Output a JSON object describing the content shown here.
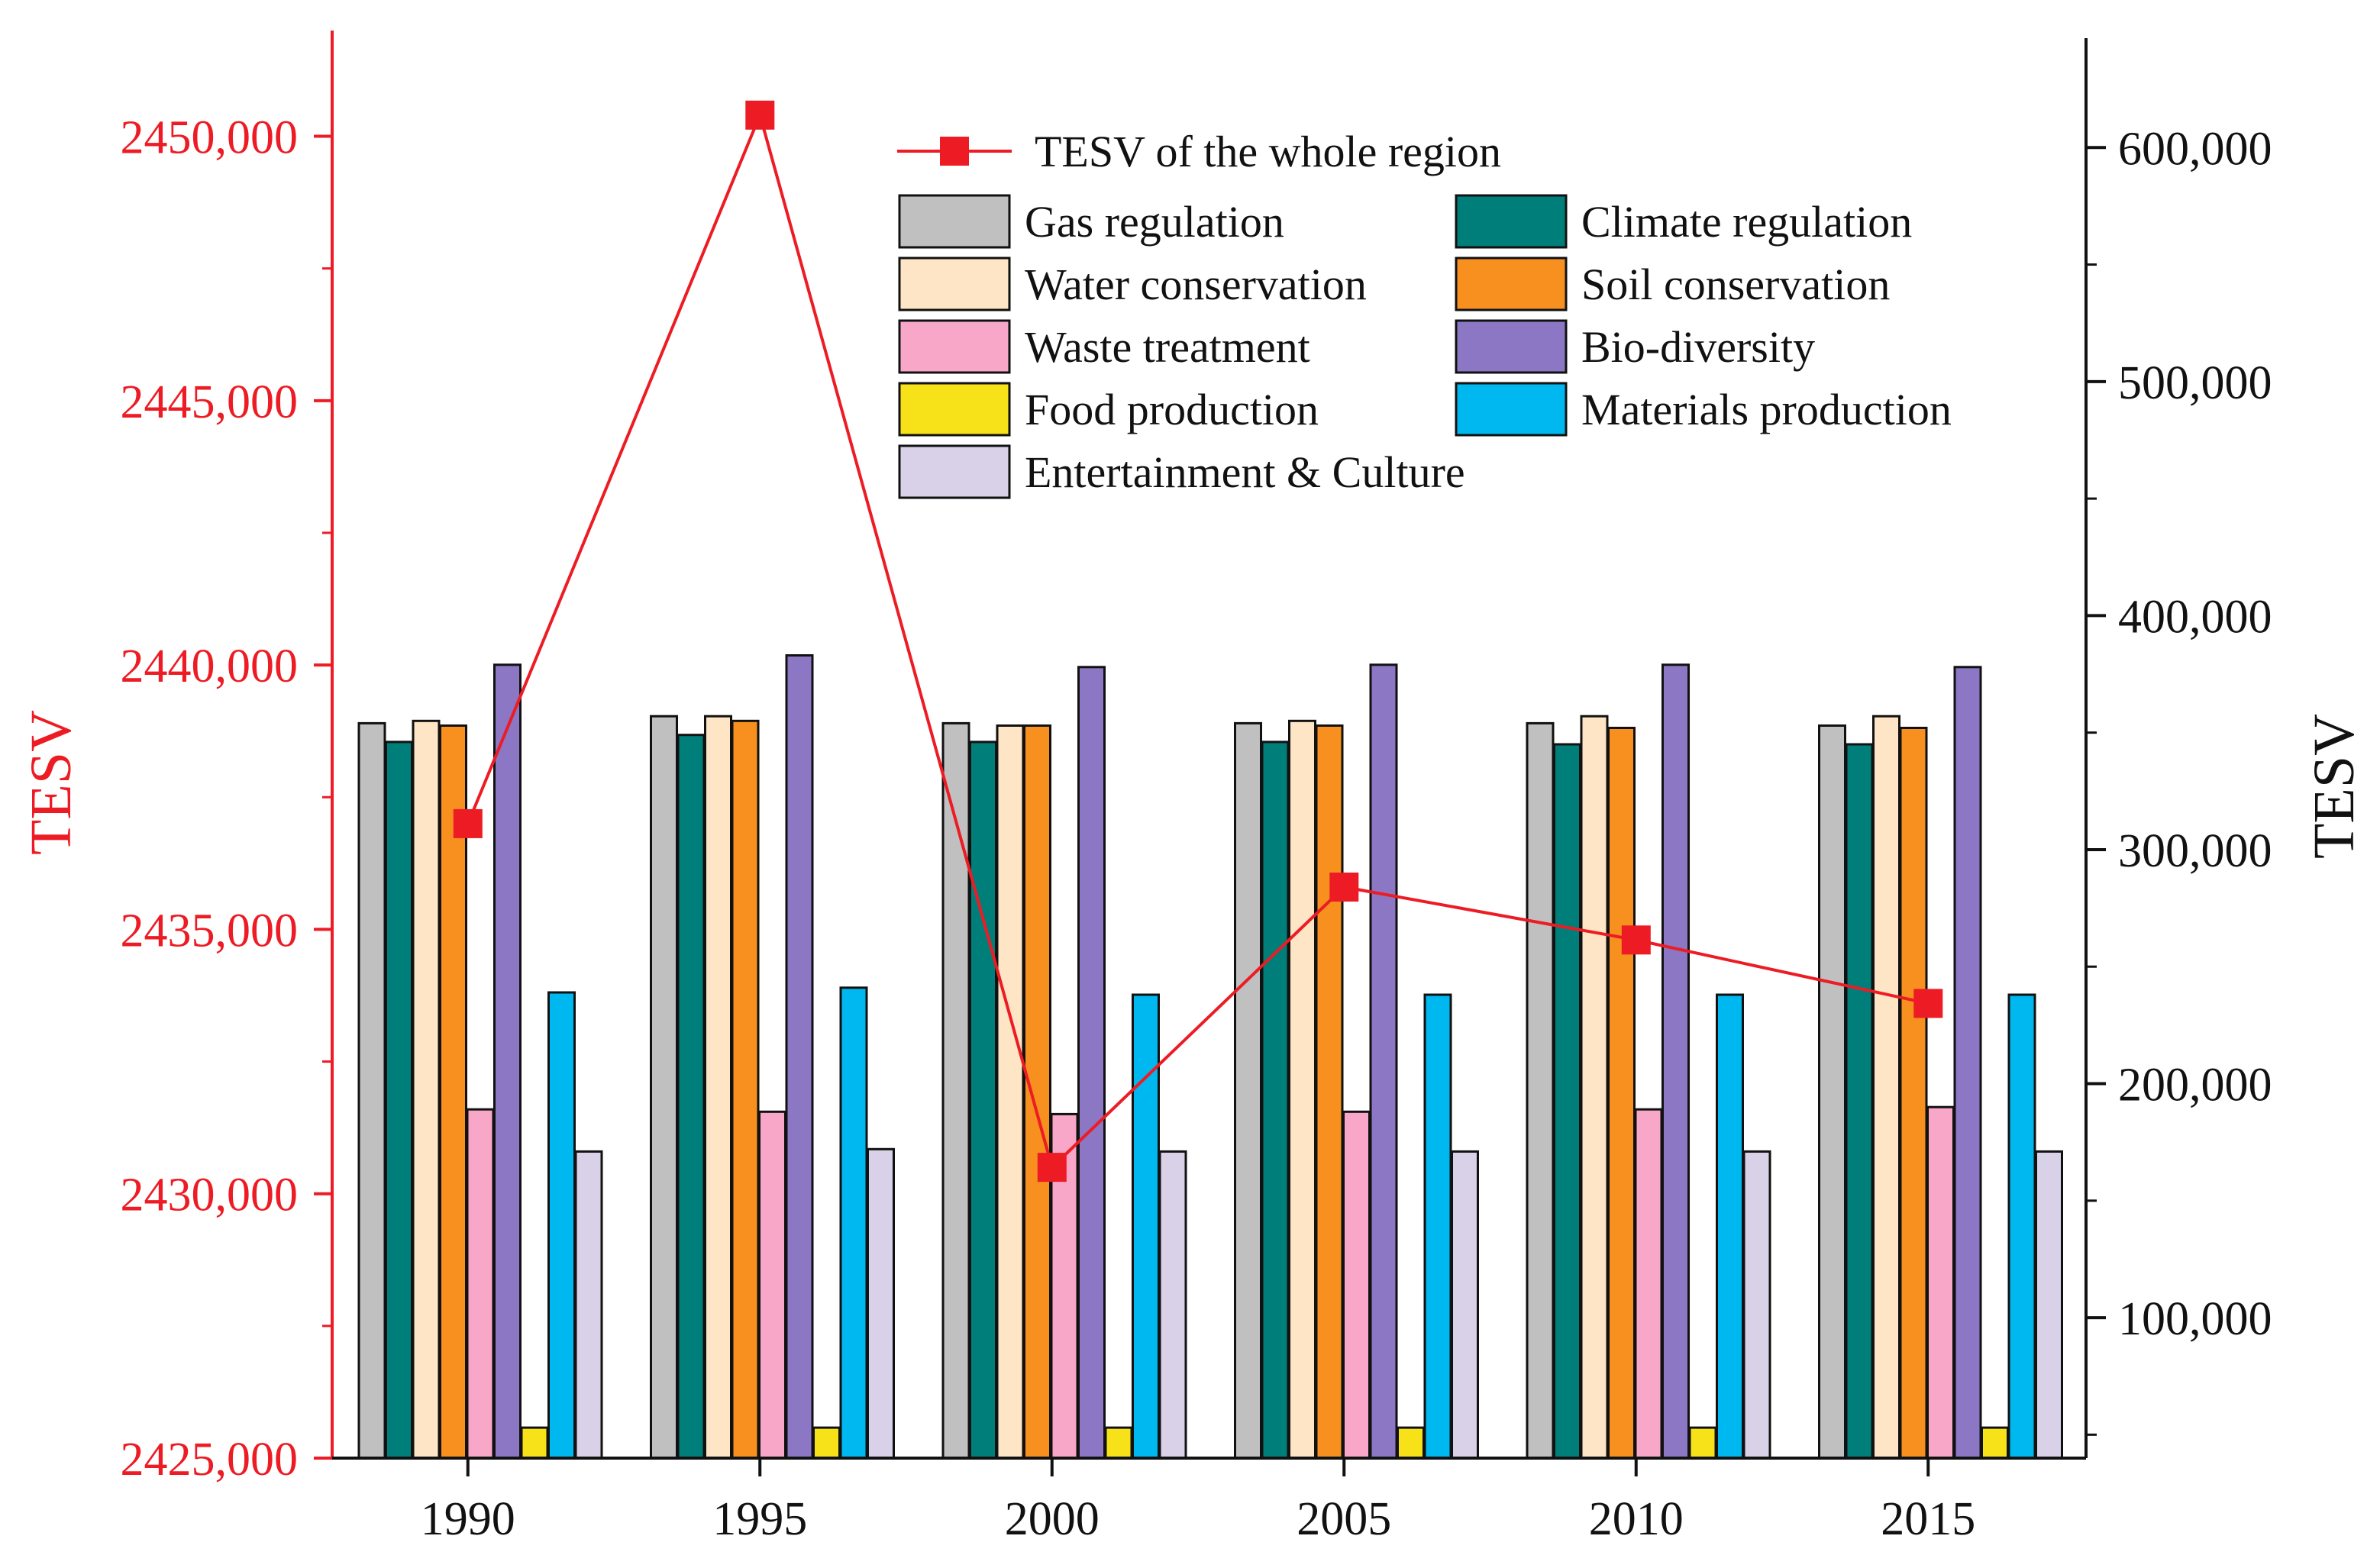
{
  "chart_data": {
    "type": "bar",
    "title": "",
    "xlabel": "",
    "categories": [
      "1990",
      "1995",
      "2000",
      "2005",
      "2010",
      "2015"
    ],
    "y_right": {
      "label": "TESV",
      "ylim": [
        40000,
        650000
      ],
      "ticks": [
        100000,
        200000,
        300000,
        400000,
        500000,
        600000
      ],
      "tick_labels": [
        "100,000",
        "200,000",
        "300,000",
        "400,000",
        "500,000",
        "600,000"
      ]
    },
    "y_left": {
      "label": "TESV",
      "ylim": [
        2425000,
        2452000
      ],
      "ticks": [
        2425000,
        2430000,
        2435000,
        2440000,
        2445000,
        2450000
      ],
      "tick_labels": [
        "2425,000",
        "2430,000",
        "2435,000",
        "2440,000",
        "2445,000",
        "2450,000"
      ]
    },
    "series": [
      {
        "name": "Gas regulation",
        "color": "#c0c0c0",
        "values": [
          354000,
          357000,
          354000,
          354000,
          354000,
          353000
        ]
      },
      {
        "name": "Climate regulation",
        "color": "#007f7a",
        "values": [
          346000,
          349000,
          346000,
          346000,
          345000,
          345000
        ]
      },
      {
        "name": "Water conservation",
        "color": "#fde5c5",
        "values": [
          355000,
          357000,
          353000,
          355000,
          357000,
          357000
        ]
      },
      {
        "name": "Soil conservation",
        "color": "#f7901e",
        "values": [
          353000,
          355000,
          353000,
          353000,
          352000,
          352000
        ]
      },
      {
        "name": "Waste treatment",
        "color": "#f8a7c9",
        "values": [
          189000,
          188000,
          187000,
          188000,
          189000,
          190000
        ]
      },
      {
        "name": "Bio-diversity",
        "color": "#8b77c4",
        "values": [
          379000,
          383000,
          378000,
          379000,
          379000,
          378000
        ]
      },
      {
        "name": "Food production",
        "color": "#f7e21a",
        "values": [
          53000,
          53000,
          53000,
          53000,
          53000,
          53000
        ]
      },
      {
        "name": "Materials production",
        "color": "#00b8f0",
        "values": [
          239000,
          241000,
          238000,
          238000,
          238000,
          238000
        ]
      },
      {
        "name": "Entertainment & Culture",
        "color": "#d9d1e8",
        "values": [
          171000,
          172000,
          171000,
          171000,
          171000,
          171000
        ]
      }
    ],
    "line": {
      "name": "TESV of the whole region",
      "axis": "left",
      "color": "#ed1c24",
      "values": [
        2437000,
        2450400,
        2430500,
        2435800,
        2434800,
        2433600
      ]
    },
    "legend_position": "top-center"
  }
}
